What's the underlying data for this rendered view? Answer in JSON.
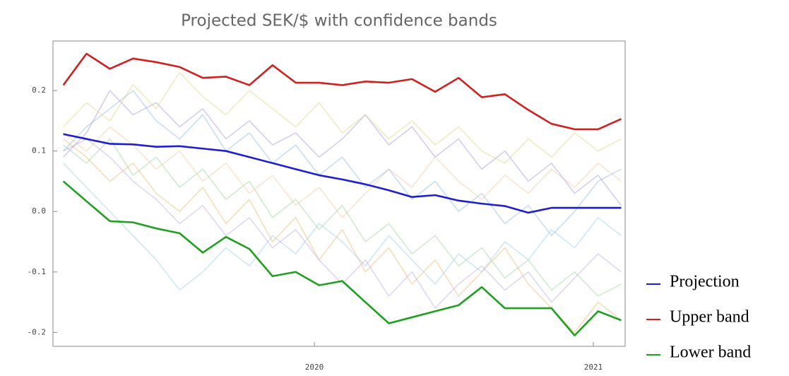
{
  "chart_data": {
    "type": "line",
    "title": "Projected SEK/$ with confidence bands",
    "x": [
      2019.1,
      2019.183,
      2019.267,
      2019.35,
      2019.433,
      2019.517,
      2019.6,
      2019.683,
      2019.767,
      2019.85,
      2019.933,
      2020.017,
      2020.1,
      2020.183,
      2020.267,
      2020.35,
      2020.433,
      2020.517,
      2020.6,
      2020.683,
      2020.767,
      2020.85,
      2020.933,
      2021.017,
      2021.1
    ],
    "xlim": [
      2019.063,
      2021.114
    ],
    "xticks": [
      2020,
      2021
    ],
    "ylim": [
      -0.223,
      0.282
    ],
    "yticks": [
      0.2,
      0.1,
      {
        "value": 0,
        "label": "0.0"
      },
      -0.1,
      -0.2
    ],
    "legend": "outside-right-bottom",
    "series": [
      {
        "color": "#7fb3e0",
        "values": [
          0.1,
          0.14,
          0.17,
          0.2,
          0.15,
          0.12,
          0.16,
          0.1,
          0.13,
          0.08,
          0.11,
          0.06,
          0.09,
          0.04,
          0.07,
          0.02,
          0.05,
          0.0,
          0.03,
          -0.02,
          0.01,
          -0.04,
          0.0,
          0.05,
          0.07
        ]
      },
      {
        "color": "#f0b060",
        "values": [
          0.12,
          0.09,
          0.05,
          0.08,
          0.03,
          0.0,
          0.04,
          -0.02,
          0.02,
          -0.05,
          -0.01,
          -0.08,
          -0.03,
          -0.1,
          -0.06,
          -0.12,
          -0.08,
          -0.14,
          -0.1,
          -0.06,
          -0.12,
          -0.16,
          -0.2,
          -0.15,
          -0.18
        ]
      },
      {
        "color": "#a08ae0",
        "values": [
          0.09,
          0.13,
          0.2,
          0.16,
          0.18,
          0.14,
          0.17,
          0.12,
          0.15,
          0.11,
          0.13,
          0.09,
          0.12,
          0.16,
          0.11,
          0.14,
          0.09,
          0.12,
          0.07,
          0.1,
          0.05,
          0.08,
          0.03,
          0.06,
          0.01
        ]
      },
      {
        "color": "#90d090",
        "values": [
          0.11,
          0.08,
          0.12,
          0.06,
          0.09,
          0.04,
          0.07,
          0.02,
          0.05,
          -0.01,
          0.02,
          -0.03,
          0.01,
          -0.05,
          -0.02,
          -0.07,
          -0.04,
          -0.09,
          -0.06,
          -0.11,
          -0.08,
          -0.13,
          -0.1,
          -0.14,
          -0.12
        ]
      },
      {
        "color": "#e0d070",
        "values": [
          0.14,
          0.18,
          0.15,
          0.21,
          0.17,
          0.23,
          0.19,
          0.16,
          0.2,
          0.17,
          0.14,
          0.18,
          0.13,
          0.16,
          0.12,
          0.15,
          0.11,
          0.14,
          0.1,
          0.08,
          0.12,
          0.09,
          0.13,
          0.1,
          0.12
        ]
      },
      {
        "color": "#90c8e8",
        "values": [
          0.08,
          0.04,
          0.0,
          -0.04,
          -0.08,
          -0.13,
          -0.1,
          -0.06,
          -0.09,
          -0.04,
          -0.07,
          -0.02,
          -0.05,
          -0.09,
          -0.04,
          -0.08,
          -0.12,
          -0.07,
          -0.1,
          -0.05,
          -0.08,
          -0.03,
          -0.06,
          -0.01,
          -0.04
        ]
      },
      {
        "color": "#f4c090",
        "values": [
          0.13,
          0.1,
          0.14,
          0.11,
          0.07,
          0.1,
          0.05,
          0.08,
          0.03,
          0.06,
          0.01,
          0.04,
          -0.01,
          0.03,
          0.07,
          0.04,
          0.09,
          0.05,
          0.02,
          0.06,
          0.03,
          0.07,
          0.04,
          0.08,
          0.05
        ]
      },
      {
        "color": "#b8a0e8",
        "values": [
          0.1,
          0.12,
          0.09,
          0.05,
          0.02,
          -0.02,
          0.01,
          -0.04,
          -0.01,
          -0.06,
          -0.03,
          -0.08,
          -0.12,
          -0.08,
          -0.14,
          -0.1,
          -0.16,
          -0.12,
          -0.09,
          -0.13,
          -0.1,
          -0.15,
          -0.11,
          -0.07,
          -0.1
        ]
      },
      {
        "name": "Projection",
        "color": "#1f1fd0",
        "values": [
          0.128,
          0.12,
          0.112,
          0.111,
          0.107,
          0.108,
          0.104,
          0.1,
          0.09,
          0.08,
          0.07,
          0.06,
          0.053,
          0.045,
          0.035,
          0.024,
          0.027,
          0.018,
          0.013,
          0.009,
          -0.002,
          0.006,
          0.006,
          0.006,
          0.006
        ]
      },
      {
        "name": "Upper band",
        "color": "#d02020",
        "values": [
          0.209,
          0.261,
          0.236,
          0.253,
          0.247,
          0.239,
          0.221,
          0.223,
          0.209,
          0.242,
          0.213,
          0.213,
          0.209,
          0.215,
          0.213,
          0.219,
          0.198,
          0.221,
          0.189,
          0.194,
          0.168,
          0.145,
          0.136,
          0.136,
          0.153
        ]
      },
      {
        "name": "Lower band",
        "color": "#20a020",
        "values": [
          0.05,
          0.017,
          -0.016,
          -0.018,
          -0.028,
          -0.036,
          -0.068,
          -0.042,
          -0.062,
          -0.107,
          -0.1,
          -0.122,
          -0.115,
          -0.15,
          -0.185,
          -0.175,
          -0.165,
          -0.155,
          -0.125,
          -0.16,
          -0.16,
          -0.16,
          -0.205,
          -0.165,
          -0.18
        ]
      }
    ]
  }
}
